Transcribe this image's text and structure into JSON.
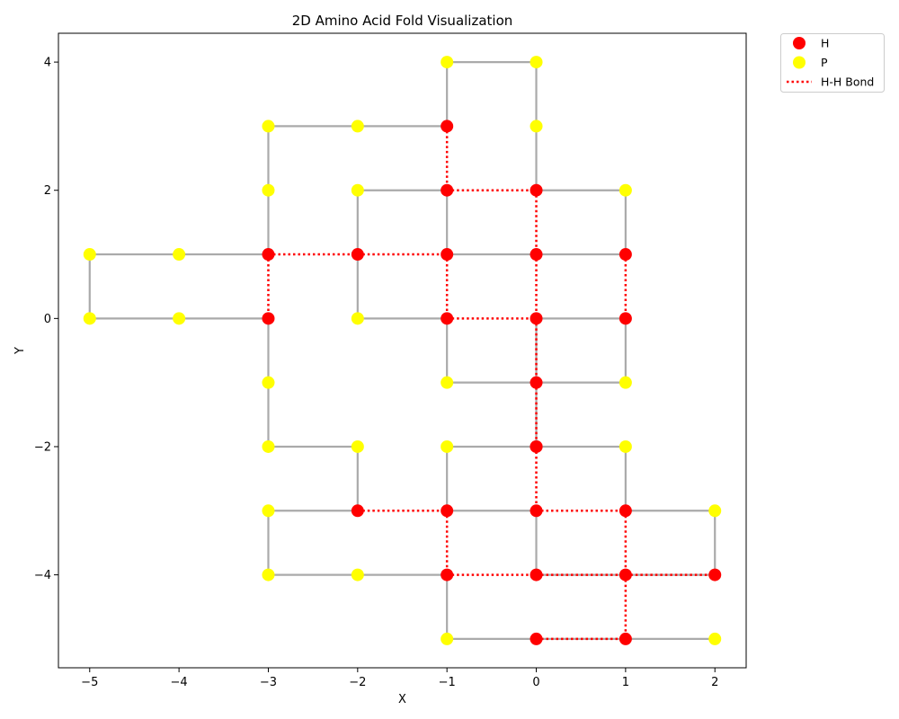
{
  "chart_data": {
    "type": "scatter",
    "title": "2D Amino Acid Fold Visualization",
    "xlabel": "X",
    "ylabel": "Y",
    "xlim": [
      -5.35,
      2.35
    ],
    "ylim": [
      -5.45,
      4.45
    ],
    "xticks": [
      -5,
      -4,
      -3,
      -2,
      -1,
      0,
      1,
      2
    ],
    "yticks": [
      -4,
      -2,
      0,
      2,
      4
    ],
    "tick_labels_x": [
      "−5",
      "−4",
      "−3",
      "−2",
      "−1",
      "0",
      "1",
      "2"
    ],
    "tick_labels_y": [
      "−4",
      "−2",
      "0",
      "2",
      "4"
    ],
    "grid": false,
    "legend": {
      "placement": "outside-top-right",
      "entries": [
        {
          "label": "H",
          "kind": "marker",
          "color": "#ff0000"
        },
        {
          "label": "P",
          "kind": "marker",
          "color": "#ffff00"
        },
        {
          "label": "H-H Bond",
          "kind": "dotted-line",
          "color": "#ff0000"
        }
      ]
    },
    "colors": {
      "H": "#ff0000",
      "P": "#ffff00",
      "backbone": "#aaaaaa",
      "bond": "#ff0000"
    },
    "chain": [
      {
        "x": 2,
        "y": -5,
        "type": "P"
      },
      {
        "x": 1,
        "y": -5,
        "type": "H"
      },
      {
        "x": 0,
        "y": -5,
        "type": "H"
      },
      {
        "x": -1,
        "y": -5,
        "type": "P"
      },
      {
        "x": -1,
        "y": -4,
        "type": "H"
      },
      {
        "x": -2,
        "y": -4,
        "type": "P"
      },
      {
        "x": -3,
        "y": -4,
        "type": "P"
      },
      {
        "x": -3,
        "y": -3,
        "type": "P"
      },
      {
        "x": -2,
        "y": -3,
        "type": "H"
      },
      {
        "x": -2,
        "y": -2,
        "type": "P"
      },
      {
        "x": -3,
        "y": -2,
        "type": "P"
      },
      {
        "x": -3,
        "y": -1,
        "type": "P"
      },
      {
        "x": -3,
        "y": 0,
        "type": "H"
      },
      {
        "x": -4,
        "y": 0,
        "type": "P"
      },
      {
        "x": -5,
        "y": 0,
        "type": "P"
      },
      {
        "x": -5,
        "y": 1,
        "type": "P"
      },
      {
        "x": -4,
        "y": 1,
        "type": "P"
      },
      {
        "x": -3,
        "y": 1,
        "type": "H"
      },
      {
        "x": -3,
        "y": 2,
        "type": "P"
      },
      {
        "x": -3,
        "y": 3,
        "type": "P"
      },
      {
        "x": -2,
        "y": 3,
        "type": "P"
      },
      {
        "x": -1,
        "y": 3,
        "type": "H"
      },
      {
        "x": -1,
        "y": 4,
        "type": "P"
      },
      {
        "x": 0,
        "y": 4,
        "type": "P"
      },
      {
        "x": 0,
        "y": 3,
        "type": "P"
      },
      {
        "x": 0,
        "y": 2,
        "type": "H"
      },
      {
        "x": 1,
        "y": 2,
        "type": "P"
      },
      {
        "x": 1,
        "y": 1,
        "type": "H"
      },
      {
        "x": 0,
        "y": 1,
        "type": "H"
      },
      {
        "x": -1,
        "y": 1,
        "type": "H"
      },
      {
        "x": -1,
        "y": 2,
        "type": "H"
      },
      {
        "x": -2,
        "y": 2,
        "type": "P"
      },
      {
        "x": -2,
        "y": 1,
        "type": "H"
      },
      {
        "x": -2,
        "y": 0,
        "type": "P"
      },
      {
        "x": -1,
        "y": 0,
        "type": "H"
      },
      {
        "x": -1,
        "y": -1,
        "type": "P"
      },
      {
        "x": 0,
        "y": -1,
        "type": "H"
      },
      {
        "x": 1,
        "y": -1,
        "type": "P"
      },
      {
        "x": 1,
        "y": 0,
        "type": "H"
      },
      {
        "x": 0,
        "y": 0,
        "type": "H"
      },
      {
        "x": 0,
        "y": -2,
        "type": "H"
      },
      {
        "x": -1,
        "y": -2,
        "type": "P"
      },
      {
        "x": -1,
        "y": -3,
        "type": "H"
      },
      {
        "x": 0,
        "y": -3,
        "type": "H"
      },
      {
        "x": 0,
        "y": -4,
        "type": "H"
      },
      {
        "x": 1,
        "y": -4,
        "type": "H"
      },
      {
        "x": 2,
        "y": -4,
        "type": "H"
      },
      {
        "x": 2,
        "y": -3,
        "type": "P"
      },
      {
        "x": 1,
        "y": -3,
        "type": "H"
      },
      {
        "x": 1,
        "y": -2,
        "type": "P"
      },
      {
        "x": 0,
        "y": -2,
        "type": "H"
      }
    ],
    "hh_bonds": [
      [
        [
          -1,
          3
        ],
        [
          -1,
          2
        ]
      ],
      [
        [
          -1,
          2
        ],
        [
          0,
          2
        ]
      ],
      [
        [
          0,
          2
        ],
        [
          0,
          1
        ]
      ],
      [
        [
          -3,
          1
        ],
        [
          -2,
          1
        ]
      ],
      [
        [
          -2,
          1
        ],
        [
          -1,
          1
        ]
      ],
      [
        [
          -3,
          1
        ],
        [
          -3,
          0
        ]
      ],
      [
        [
          -1,
          1
        ],
        [
          -1,
          0
        ]
      ],
      [
        [
          -1,
          0
        ],
        [
          0,
          0
        ]
      ],
      [
        [
          0,
          1
        ],
        [
          0,
          0
        ]
      ],
      [
        [
          1,
          1
        ],
        [
          1,
          0
        ]
      ],
      [
        [
          0,
          0
        ],
        [
          0,
          -1
        ]
      ],
      [
        [
          0,
          -1
        ],
        [
          0,
          -2
        ]
      ],
      [
        [
          0,
          -2
        ],
        [
          0,
          -3
        ]
      ],
      [
        [
          -2,
          -3
        ],
        [
          -1,
          -3
        ]
      ],
      [
        [
          -1,
          -3
        ],
        [
          -1,
          -4
        ]
      ],
      [
        [
          0,
          -3
        ],
        [
          1,
          -3
        ]
      ],
      [
        [
          1,
          -3
        ],
        [
          1,
          -4
        ]
      ],
      [
        [
          -1,
          -4
        ],
        [
          0,
          -4
        ]
      ],
      [
        [
          0,
          -4
        ],
        [
          1,
          -4
        ]
      ],
      [
        [
          1,
          -4
        ],
        [
          2,
          -4
        ]
      ],
      [
        [
          1,
          -4
        ],
        [
          1,
          -5
        ]
      ],
      [
        [
          0,
          -5
        ],
        [
          1,
          -5
        ]
      ]
    ]
  }
}
